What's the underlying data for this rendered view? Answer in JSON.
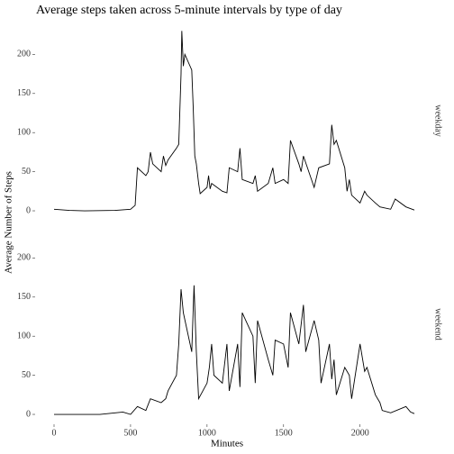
{
  "chart_data": {
    "type": "line",
    "title": "Average steps taken across 5-minute intervals by type of day",
    "xlabel": "Minutes",
    "ylabel": "Average Number of Steps",
    "color": "#000000",
    "xlim": [
      -117.75,
      2472.75
    ],
    "xticks": [
      0,
      500,
      1000,
      1500,
      2000
    ],
    "ylim": [
      -11.5,
      241.9
    ],
    "yticks": [
      0,
      50,
      100,
      150,
      200
    ],
    "panels": [
      {
        "label": "weekday",
        "x": [
          0,
          100,
          200,
          300,
          400,
          500,
          530,
          545,
          600,
          615,
          630,
          645,
          700,
          715,
          730,
          745,
          800,
          815,
          830,
          835,
          845,
          855,
          900,
          910,
          920,
          930,
          945,
          955,
          1000,
          1010,
          1020,
          1030,
          1100,
          1130,
          1145,
          1200,
          1215,
          1230,
          1300,
          1315,
          1330,
          1400,
          1430,
          1445,
          1500,
          1530,
          1545,
          1600,
          1615,
          1630,
          1700,
          1730,
          1800,
          1815,
          1830,
          1845,
          1900,
          1915,
          1930,
          1945,
          2000,
          2030,
          2045,
          2100,
          2130,
          2200,
          2230,
          2300,
          2355
        ],
        "values": [
          2,
          0.5,
          0,
          0.2,
          0.5,
          2,
          7,
          55,
          45,
          50,
          75,
          60,
          50,
          70,
          58,
          65,
          80,
          85,
          175,
          230,
          185,
          200,
          180,
          130,
          70,
          60,
          35,
          22,
          30,
          45,
          28,
          35,
          25,
          23,
          55,
          50,
          80,
          40,
          35,
          45,
          25,
          35,
          55,
          35,
          40,
          35,
          90,
          60,
          50,
          70,
          30,
          55,
          60,
          110,
          85,
          90,
          55,
          25,
          40,
          20,
          10,
          25,
          20,
          10,
          5,
          2,
          15,
          5,
          1
        ]
      },
      {
        "label": "weekend",
        "x": [
          0,
          100,
          300,
          400,
          450,
          500,
          545,
          600,
          630,
          700,
          730,
          745,
          800,
          815,
          830,
          845,
          900,
          915,
          930,
          945,
          1000,
          1015,
          1030,
          1045,
          1100,
          1130,
          1145,
          1200,
          1215,
          1230,
          1300,
          1315,
          1330,
          1400,
          1430,
          1445,
          1500,
          1530,
          1545,
          1600,
          1630,
          1645,
          1700,
          1730,
          1745,
          1800,
          1815,
          1830,
          1845,
          1900,
          1930,
          1945,
          2000,
          2030,
          2045,
          2100,
          2130,
          2145,
          2200,
          2300,
          2330,
          2355
        ],
        "values": [
          0,
          0,
          0,
          2,
          3,
          0,
          10,
          5,
          20,
          15,
          20,
          30,
          50,
          90,
          160,
          130,
          80,
          165,
          80,
          20,
          40,
          60,
          90,
          50,
          40,
          90,
          30,
          90,
          35,
          130,
          100,
          40,
          120,
          70,
          50,
          95,
          90,
          60,
          130,
          90,
          140,
          80,
          120,
          95,
          40,
          90,
          45,
          70,
          25,
          60,
          50,
          20,
          90,
          55,
          60,
          25,
          15,
          5,
          2,
          10,
          3,
          1
        ]
      }
    ]
  }
}
